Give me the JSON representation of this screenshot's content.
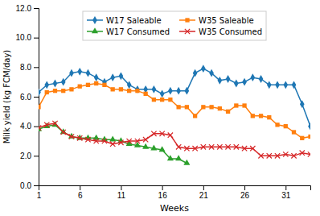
{
  "chart_data": {
    "type": "line",
    "xlabel": "Weeks",
    "ylabel": "Milk yield (kg FCM/day)",
    "xlim": [
      1,
      34
    ],
    "xticks": [
      1,
      6,
      11,
      16,
      21,
      26,
      31
    ],
    "ylim": [
      0.0,
      12.0
    ],
    "yticks": [
      {
        "value": 0.0,
        "label": "0.0"
      },
      {
        "value": 2.0,
        "label": "2.0"
      },
      {
        "value": 4.0,
        "label": "4.0"
      },
      {
        "value": 6.0,
        "label": "6.0"
      },
      {
        "value": 8.0,
        "label": "8.0"
      },
      {
        "value": 10.0,
        "label": "10.0"
      },
      {
        "value": 12.0,
        "label": "12.0"
      }
    ],
    "grid": false,
    "legend": "top",
    "series": [
      {
        "name": "W17 Saleable",
        "marker": "diamond",
        "x": [
          1,
          2,
          3,
          4,
          5,
          6,
          7,
          8,
          9,
          10,
          11,
          12,
          13,
          14,
          15,
          16,
          17,
          18,
          19,
          20,
          21,
          22,
          23,
          24,
          25,
          26,
          27,
          28,
          29,
          30,
          31,
          32,
          33,
          34
        ],
        "values": [
          6.3,
          6.8,
          6.9,
          7.0,
          7.6,
          7.7,
          7.6,
          7.3,
          7.0,
          7.3,
          7.4,
          6.8,
          6.5,
          6.5,
          6.5,
          6.2,
          6.4,
          6.4,
          6.4,
          7.6,
          7.9,
          7.6,
          7.1,
          7.2,
          6.9,
          7.0,
          7.3,
          7.2,
          6.8,
          6.8,
          6.8,
          6.8,
          5.5,
          4.0
        ]
      },
      {
        "name": "W35 Saleable",
        "marker": "square",
        "x": [
          1,
          2,
          3,
          4,
          5,
          6,
          7,
          8,
          9,
          10,
          11,
          12,
          13,
          14,
          15,
          16,
          17,
          18,
          19,
          20,
          21,
          22,
          23,
          24,
          25,
          26,
          27,
          28,
          29,
          30,
          31,
          32,
          33,
          34
        ],
        "values": [
          5.3,
          6.3,
          6.4,
          6.4,
          6.5,
          6.7,
          6.8,
          6.9,
          6.8,
          6.5,
          6.5,
          6.4,
          6.4,
          6.2,
          5.8,
          5.8,
          5.8,
          5.3,
          5.3,
          4.7,
          5.3,
          5.3,
          5.2,
          5.0,
          5.4,
          5.4,
          4.7,
          4.7,
          4.6,
          4.1,
          4.0,
          3.6,
          3.2,
          3.3
        ]
      },
      {
        "name": "W17 Consumed",
        "marker": "triangle",
        "x": [
          1,
          2,
          3,
          4,
          5,
          6,
          7,
          8,
          9,
          10,
          11,
          12,
          13,
          14,
          15,
          16,
          17,
          18,
          19
        ],
        "values": [
          3.8,
          4.0,
          4.1,
          3.6,
          3.3,
          3.2,
          3.2,
          3.2,
          3.1,
          3.1,
          3.0,
          2.8,
          2.7,
          2.6,
          2.5,
          2.4,
          1.8,
          1.8,
          1.5
        ]
      },
      {
        "name": "W35 Consumed",
        "marker": "x",
        "x": [
          1,
          2,
          3,
          4,
          5,
          6,
          7,
          8,
          9,
          10,
          11,
          12,
          13,
          14,
          15,
          16,
          17,
          18,
          19,
          20,
          21,
          22,
          23,
          24,
          25,
          26,
          27,
          28,
          29,
          30,
          31,
          32,
          33,
          34
        ],
        "values": [
          3.9,
          4.1,
          4.2,
          3.6,
          3.3,
          3.2,
          3.1,
          3.0,
          3.0,
          2.8,
          2.9,
          3.0,
          3.0,
          3.1,
          3.5,
          3.5,
          3.4,
          2.6,
          2.5,
          2.5,
          2.6,
          2.6,
          2.6,
          2.6,
          2.6,
          2.5,
          2.5,
          2.0,
          2.0,
          2.0,
          2.1,
          2.0,
          2.2,
          2.1
        ]
      }
    ]
  }
}
